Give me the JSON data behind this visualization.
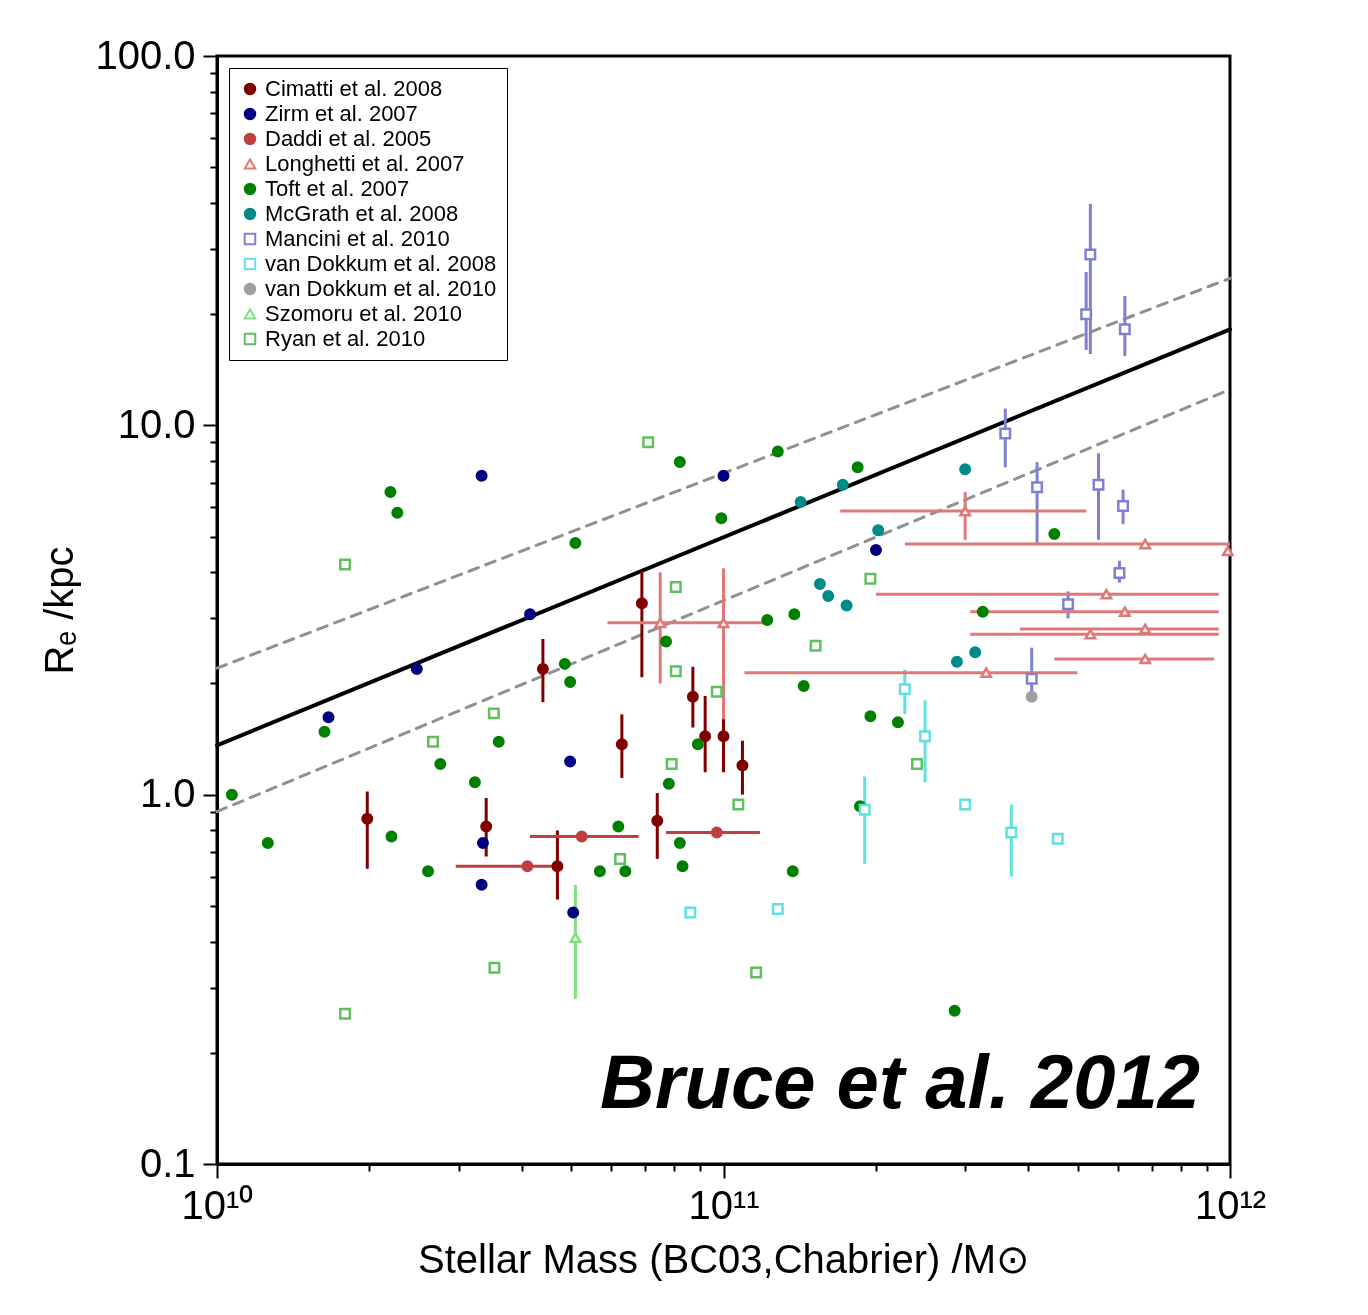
{
  "chart_data": {
    "type": "scatter",
    "xlabel": "Stellar Mass (BC03,Chabrier) /M⊙",
    "ylabel": "Rₑ /kpc",
    "log": "xy",
    "legend": "top left",
    "xlim": [
      10000000000.0,
      1000000000000.0
    ],
    "ylim": [
      0.1,
      100
    ],
    "xticks": [
      {
        "value": 10000000000.0,
        "label": "10¹⁰"
      },
      {
        "value": 20000000000.0,
        "label": null
      },
      {
        "value": 30000000000.0,
        "label": null
      },
      {
        "value": 40000000000.0,
        "label": null
      },
      {
        "value": 50000000000.0,
        "label": null
      },
      {
        "value": 60000000000.0,
        "label": null
      },
      {
        "value": 70000000000.0,
        "label": null
      },
      {
        "value": 80000000000.0,
        "label": null
      },
      {
        "value": 90000000000.0,
        "label": null
      },
      {
        "value": 100000000000.0,
        "label": "10¹¹"
      },
      {
        "value": 200000000000.0,
        "label": null
      },
      {
        "value": 300000000000.0,
        "label": null
      },
      {
        "value": 400000000000.0,
        "label": null
      },
      {
        "value": 500000000000.0,
        "label": null
      },
      {
        "value": 600000000000.0,
        "label": null
      },
      {
        "value": 700000000000.0,
        "label": null
      },
      {
        "value": 800000000000.0,
        "label": null
      },
      {
        "value": 900000000000.0,
        "label": null
      },
      {
        "value": 1000000000000.0,
        "label": "10¹²"
      }
    ],
    "yticks": [
      0.1,
      {
        "value": 0.2,
        "label": null
      },
      {
        "value": 0.3,
        "label": null
      },
      {
        "value": 0.4,
        "label": null
      },
      {
        "value": 0.5,
        "label": null
      },
      {
        "value": 0.6,
        "label": null
      },
      {
        "value": 0.7,
        "label": null
      },
      {
        "value": 0.8,
        "label": null
      },
      {
        "value": 0.9,
        "label": null
      },
      {
        "value": 1,
        "label": "1.0"
      },
      {
        "value": 2,
        "label": null
      },
      {
        "value": 3,
        "label": null
      },
      {
        "value": 4,
        "label": null
      },
      {
        "value": 5,
        "label": null
      },
      {
        "value": 6,
        "label": null
      },
      {
        "value": 7,
        "label": null
      },
      {
        "value": 8,
        "label": null
      },
      {
        "value": 9,
        "label": null
      },
      {
        "value": 10,
        "label": "10.0"
      },
      {
        "value": 20,
        "label": null
      },
      {
        "value": 30,
        "label": null
      },
      {
        "value": 40,
        "label": null
      },
      {
        "value": 50,
        "label": null
      },
      {
        "value": 60,
        "label": null
      },
      {
        "value": 70,
        "label": null
      },
      {
        "value": 80,
        "label": null
      },
      {
        "value": 90,
        "label": null
      },
      {
        "value": 100,
        "label": "100.0"
      }
    ],
    "annotations": [
      "Bruce et al. 2012"
    ],
    "series": [
      {
        "type": "line",
        "color": "#000000",
        "line_style": "solid",
        "x": [
          10000000000.0,
          1000000000000.0
        ],
        "values": [
          1.36,
          18.2
        ]
      },
      {
        "type": "line",
        "color": "#909090",
        "line_style": "dashed",
        "x": [
          10000000000.0,
          1000000000000.0
        ],
        "values": [
          2.2,
          25
        ]
      },
      {
        "type": "line",
        "color": "#909090",
        "line_style": "dashed",
        "x": [
          10000000000.0,
          1000000000000.0
        ],
        "values": [
          0.9,
          12.5
        ]
      },
      {
        "name": "Cimatti et al. 2008",
        "color": "#800000",
        "marker": "circle",
        "x": [
          19800000000.0,
          44000000000.0,
          34000000000.0,
          47000000000.0,
          63000000000.0,
          69000000000.0,
          74000000000.0,
          87000000000.0,
          92000000000.0,
          100000000000.0,
          109000000000.0
        ],
        "values": [
          0.86,
          2.19,
          0.82,
          0.64,
          1.37,
          3.3,
          0.85,
          1.84,
          1.44,
          1.44,
          1.2
        ],
        "errors": [
          [
            0.63,
            1.02
          ],
          [
            1.78,
            2.64
          ],
          [
            0.68,
            0.98
          ],
          [
            0.52,
            0.8
          ],
          [
            1.11,
            1.65
          ],
          [
            2.08,
            4.04
          ],
          [
            0.67,
            1.01
          ],
          [
            1.52,
            2.22
          ],
          [
            1.15,
            1.85
          ],
          [
            1.15,
            1.85
          ],
          [
            1.0,
            1.4
          ]
        ]
      },
      {
        "name": "Zirm et al. 2007",
        "color": "#000080",
        "marker": "circle",
        "x": [
          33300000000.0,
          100000000000.0,
          16600000000.0,
          24800000000.0,
          41500000000.0,
          49800000000.0,
          33500000000.0,
          33300000000.0,
          50500000000.0,
          200000000000.0
        ],
        "values": [
          7.3,
          7.3,
          1.62,
          2.19,
          3.08,
          1.23,
          0.74,
          0.57,
          0.48,
          4.6
        ]
      },
      {
        "name": "Daddi et al. 2005",
        "color": "#c04040",
        "marker": "circle",
        "x": [
          41000000000.0,
          52500000000.0,
          97000000000.0
        ],
        "values": [
          0.64,
          0.77,
          0.79
        ],
        "xerrors": [
          [
            29600000000.0,
            47500000000.0
          ],
          [
            41500000000.0,
            68000000000.0
          ],
          [
            77000000000.0,
            118000000000.0
          ]
        ]
      },
      {
        "name": "Longhetti et al. 2007",
        "color": "#e07878",
        "marker": "triangle",
        "x": [
          300000000000.0,
          680000000000.0,
          570000000000.0,
          620000000000.0,
          530000000000.0,
          680000000000.0,
          680000000000.0,
          330000000000.0,
          100000000000.0,
          75000000000.0,
          990000000000.0
        ],
        "values": [
          5.86,
          4.77,
          3.49,
          3.13,
          2.72,
          2.81,
          2.33,
          2.14,
          2.92,
          2.92,
          4.57
        ],
        "xerrors": [
          [
            170000000000.0,
            520000000000.0
          ],
          [
            228000000000.0,
            1000000000000.0
          ],
          [
            200000000000.0,
            950000000000.0
          ],
          [
            307000000000.0,
            950000000000.0
          ],
          [
            307000000000.0,
            950000000000.0
          ],
          [
            385000000000.0,
            950000000000.0
          ],
          [
            450000000000.0,
            930000000000.0
          ],
          [
            110000000000.0,
            500000000000.0
          ],
          [
            59000000000.0,
            121000000000.0
          ],
          null,
          null
        ],
        "errors": [
          [
            4.9,
            6.6
          ],
          null,
          null,
          null,
          null,
          null,
          null,
          null,
          [
            1.6,
            4.1
          ],
          [
            2.0,
            4.0
          ],
          null
        ]
      },
      {
        "name": "Toft et al. 2007",
        "color": "#008000",
        "marker": "circle",
        "x": [
          22000000000.0,
          22700000000.0,
          82000000000.0,
          128000000000.0,
          184000000000.0,
          51000000000.0,
          99000000000.0,
          122000000000.0,
          138000000000.0,
          77000000000.0,
          48600000000.0,
          49800000000.0,
          16300000000.0,
          10700000000.0,
          12600000000.0,
          27600000000.0,
          32300000000.0,
          36000000000.0,
          22100000000.0,
          26100000000.0,
          57000000000.0,
          64000000000.0,
          62000000000.0,
          82000000000.0,
          83000000000.0,
          78000000000.0,
          89000000000.0,
          144000000000.0,
          195000000000.0,
          221000000000.0,
          186000000000.0,
          137000000000.0,
          286000000000.0,
          325000000000.0,
          450000000000.0
        ],
        "values": [
          6.6,
          5.8,
          7.96,
          8.5,
          7.7,
          4.8,
          5.6,
          2.97,
          3.08,
          2.6,
          2.26,
          2.02,
          1.48,
          1.0,
          0.74,
          1.21,
          1.08,
          1.39,
          0.77,
          0.62,
          0.62,
          0.62,
          0.82,
          0.74,
          0.64,
          1.07,
          1.37,
          1.97,
          1.63,
          1.57,
          0.93,
          0.62,
          0.26,
          3.13,
          5.08
        ]
      },
      {
        "name": "McGrath et al. 2008",
        "color": "#008b8b",
        "marker": "circle",
        "x": [
          142000000000.0,
          172000000000.0,
          300000000000.0,
          202000000000.0,
          155000000000.0,
          161000000000.0,
          175000000000.0,
          314000000000.0,
          289000000000.0
        ],
        "values": [
          6.2,
          6.9,
          7.6,
          5.2,
          3.72,
          3.45,
          3.25,
          2.43,
          2.29
        ]
      },
      {
        "name": "Mancini et al. 2010",
        "color": "#8080d0",
        "marker": "square",
        "x": [
          530000000000.0,
          520000000000.0,
          620000000000.0,
          360000000000.0,
          416000000000.0,
          550000000000.0,
          615000000000.0,
          605000000000.0,
          479000000000.0,
          406000000000.0
        ],
        "values": [
          29,
          20,
          18.2,
          9.5,
          6.8,
          6.9,
          6.05,
          3.98,
          3.28,
          2.06
        ],
        "errors": [
          [
            15.6,
            39.8
          ],
          [
            16,
            26
          ],
          [
            15.4,
            22.4
          ],
          [
            7.7,
            11.1
          ],
          [
            4.8,
            7.95
          ],
          [
            4.9,
            8.4
          ],
          [
            5.4,
            6.7
          ],
          [
            3.75,
            4.3
          ],
          [
            3.0,
            3.55
          ],
          [
            1.8,
            2.5
          ]
        ]
      },
      {
        "name": "van Dokkum et al. 2008",
        "color": "#60e0e0",
        "marker": "square",
        "x": [
          228000000000.0,
          250000000000.0,
          190000000000.0,
          300000000000.0,
          370000000000.0,
          457000000000.0,
          128000000000.0,
          86000000000.0
        ],
        "values": [
          1.93,
          1.44,
          0.91,
          0.94,
          0.79,
          0.76,
          0.49,
          0.48
        ],
        "errors": [
          [
            1.65,
            2.18
          ],
          [
            1.08,
            1.8
          ],
          [
            0.65,
            1.12
          ],
          null,
          [
            0.6,
            0.94
          ],
          null,
          null,
          null
        ]
      },
      {
        "name": "van Dokkum et al. 2010",
        "color": "#a0a0a0",
        "marker": "circle",
        "x": [
          406000000000.0
        ],
        "values": [
          1.84
        ]
      },
      {
        "name": "Szomoru et al. 2010",
        "color": "#80e080",
        "marker": "triangle",
        "x": [
          51000000000.0
        ],
        "values": [
          0.41
        ],
        "errors": [
          [
            0.28,
            0.57
          ]
        ]
      },
      {
        "name": "Ryan et al. 2010",
        "color": "#60c060",
        "marker": "square",
        "x": [
          71000000000.0,
          17900000000.0,
          80500000000.0,
          80500000000.0,
          97000000000.0,
          152000000000.0,
          195000000000.0,
          26700000000.0,
          35200000000.0,
          79000000000.0,
          107000000000.0,
          62500000000.0,
          17900000000.0,
          35300000000.0,
          116000000000.0,
          241000000000.0
        ],
        "values": [
          9.0,
          4.2,
          3.65,
          2.16,
          1.9,
          2.53,
          3.84,
          1.39,
          1.66,
          1.21,
          0.94,
          0.67,
          0.255,
          0.34,
          0.33,
          1.21
        ]
      }
    ]
  }
}
